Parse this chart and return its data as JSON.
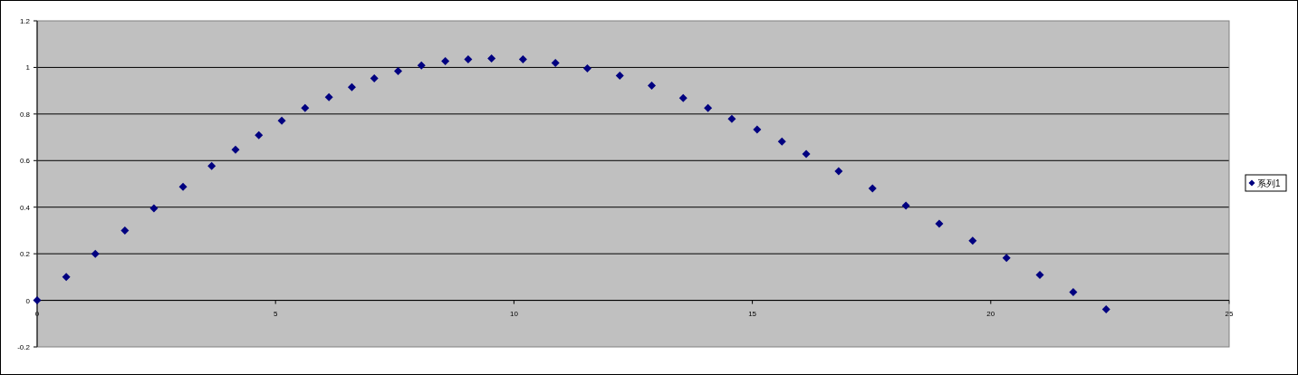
{
  "chart_data": {
    "type": "scatter",
    "x": [
      0,
      0.61,
      1.22,
      1.84,
      2.45,
      3.06,
      3.66,
      4.16,
      4.65,
      5.13,
      5.62,
      6.12,
      6.6,
      7.07,
      7.57,
      8.06,
      8.56,
      9.04,
      9.53,
      10.19,
      10.87,
      11.54,
      12.22,
      12.89,
      13.55,
      14.07,
      14.57,
      15.1,
      15.62,
      16.13,
      16.81,
      17.52,
      18.22,
      18.92,
      19.62,
      20.33,
      21.03,
      21.73,
      22.42
    ],
    "series": [
      {
        "name": "系列1",
        "color": "#000080",
        "values": [
          0,
          0.1,
          0.2,
          0.3,
          0.395,
          0.487,
          0.577,
          0.647,
          0.709,
          0.771,
          0.826,
          0.872,
          0.915,
          0.953,
          0.984,
          1.008,
          1.027,
          1.035,
          1.039,
          1.035,
          1.019,
          0.996,
          0.965,
          0.922,
          0.868,
          0.826,
          0.779,
          0.733,
          0.682,
          0.628,
          0.554,
          0.481,
          0.407,
          0.329,
          0.256,
          0.182,
          0.109,
          0.035,
          -0.039
        ]
      }
    ],
    "xlim": [
      0,
      25
    ],
    "ylim": [
      -0.2,
      1.2
    ],
    "xticks": [
      0,
      5,
      10,
      15,
      20,
      25
    ],
    "yticks": [
      -0.2,
      0,
      0.2,
      0.4,
      0.6,
      0.8,
      1,
      1.2
    ],
    "grid": "y",
    "legend": "right",
    "marker": "diamond"
  }
}
